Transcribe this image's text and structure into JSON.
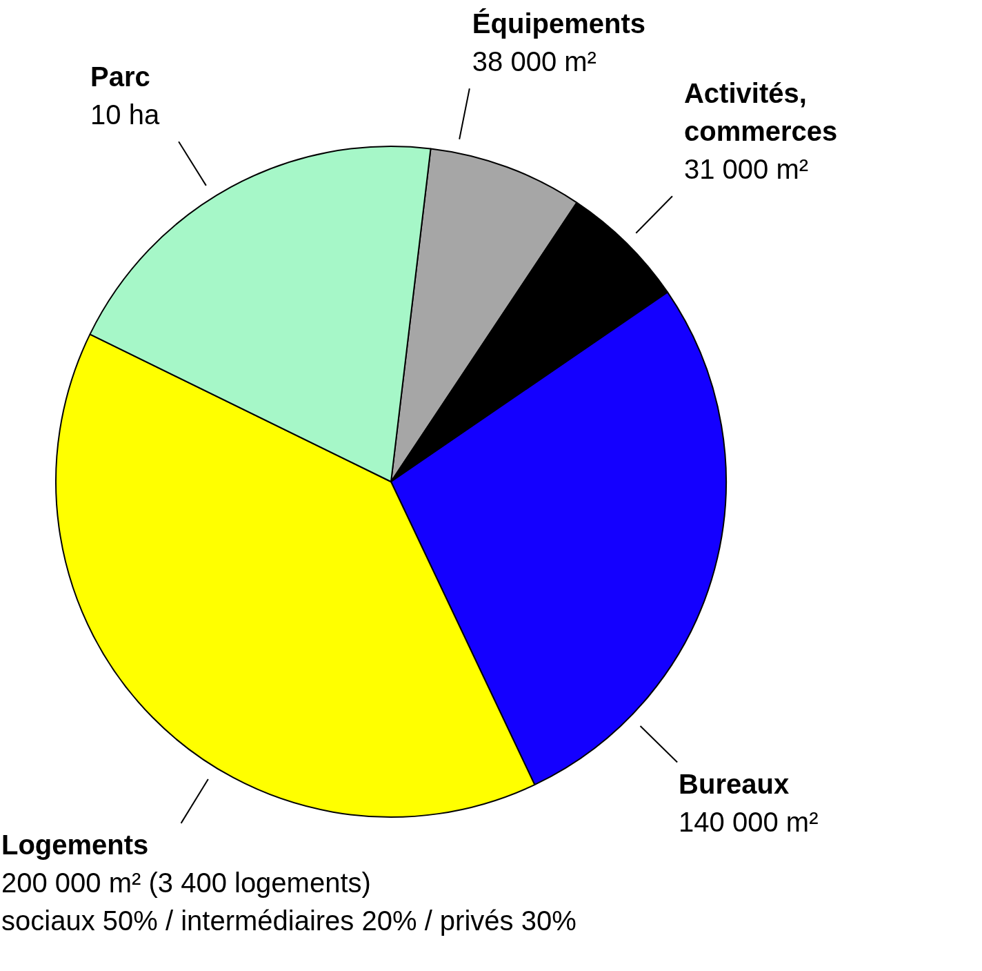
{
  "chart_data": {
    "type": "pie",
    "categories": [
      "Équipements",
      "Activités, commerces",
      "Bureaux",
      "Logements",
      "Parc"
    ],
    "values": [
      38000,
      31000,
      140000,
      200000,
      100000
    ],
    "colors": [
      "#a6a6a6",
      "#000000",
      "#1400ff",
      "#ffff00",
      "#a6f7c8"
    ],
    "value_labels": [
      "38 000 m²",
      "31 000 m²",
      "140 000 m²",
      "200 000 m² (3 400 logements)",
      null
    ],
    "annotations": [
      {
        "text": "sociaux 50% / intermédiaires 20% / privés 30%",
        "x": "Logements"
      },
      {
        "text": "10 ha",
        "x": "Parc"
      }
    ]
  }
}
